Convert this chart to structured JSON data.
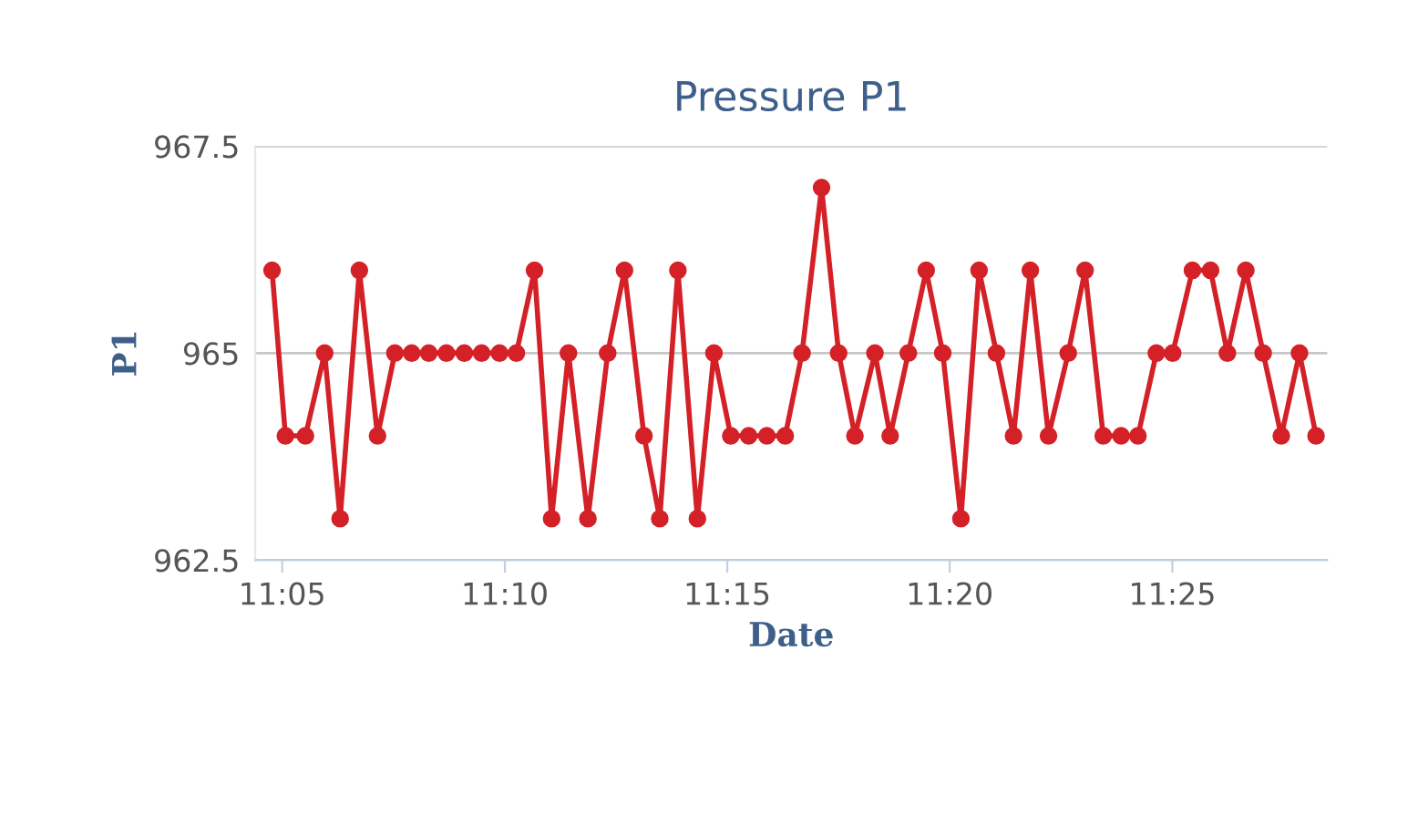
{
  "chart_data": {
    "type": "line",
    "title": "Pressure P1",
    "xlabel": "Date",
    "ylabel": "P1",
    "x": [
      11.0795,
      11.0845,
      11.092,
      11.0992,
      11.105,
      11.1122,
      11.119,
      11.1255,
      11.1318,
      11.1382,
      11.1448,
      11.1515,
      11.158,
      11.1647,
      11.171,
      11.1778,
      11.1842,
      11.1905,
      11.1978,
      11.2052,
      11.2115,
      11.2188,
      11.2247,
      11.2315,
      11.2388,
      11.245,
      11.2513,
      11.258,
      11.2648,
      11.2717,
      11.278,
      11.2853,
      11.2917,
      11.2978,
      11.3053,
      11.311,
      11.3178,
      11.3245,
      11.3307,
      11.3375,
      11.3443,
      11.3508,
      11.3572,
      11.3635,
      11.3703,
      11.3777,
      11.384,
      11.3908,
      11.3975,
      11.4038,
      11.4107,
      11.4168,
      11.4242,
      11.431,
      11.4373,
      11.4442,
      11.4507,
      11.4575,
      11.4643,
      11.4705
    ],
    "series": [
      {
        "color": "#d42127",
        "values": [
          966,
          964,
          964,
          965,
          963,
          966,
          964,
          965,
          965,
          965,
          965,
          965,
          965,
          965,
          965,
          966,
          963,
          965,
          963,
          965,
          966,
          964,
          963,
          966,
          963,
          965,
          964,
          964,
          964,
          964,
          965,
          967,
          965,
          964,
          965,
          964,
          965,
          966,
          965,
          963,
          966,
          965,
          964,
          966,
          964,
          965,
          966,
          964,
          964,
          964,
          965,
          965,
          966,
          966,
          965,
          966,
          965,
          964,
          965,
          964
        ]
      }
    ],
    "xlim": [
      11.0732,
      11.4747
    ],
    "xticks": [
      {
        "value": 11.0833,
        "label": "11:05"
      },
      {
        "value": 11.1667,
        "label": "11:10"
      },
      {
        "value": 11.25,
        "label": "11:15"
      },
      {
        "value": 11.3333,
        "label": "11:20"
      },
      {
        "value": 11.4167,
        "label": "11:25"
      }
    ],
    "ylim": [
      962.5,
      967.5
    ],
    "yticks": [
      962.5,
      965,
      967.5
    ],
    "grid": "y",
    "marker": "circle",
    "line_style": "solid",
    "legend": false
  }
}
